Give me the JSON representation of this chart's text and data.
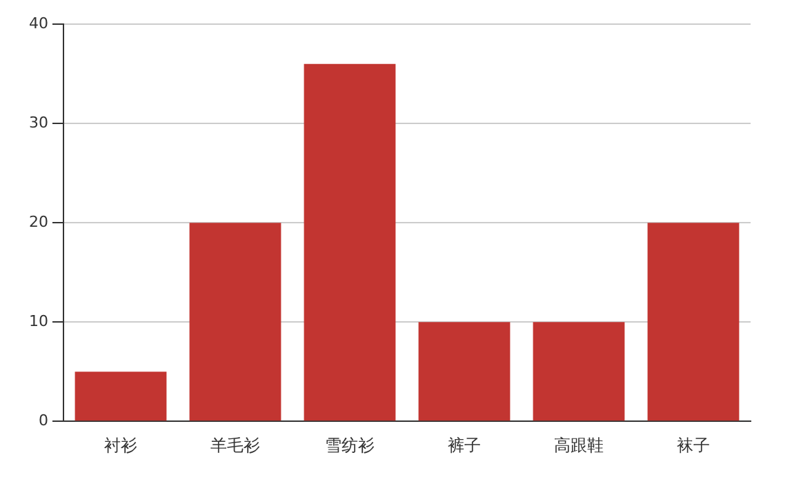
{
  "chart_data": {
    "type": "bar",
    "categories": [
      "衬衫",
      "羊毛衫",
      "雪纺衫",
      "裤子",
      "高跟鞋",
      "袜子"
    ],
    "values": [
      5,
      20,
      36,
      10,
      10,
      20
    ],
    "color": "#c23531",
    "ylim": [
      0,
      40
    ],
    "yticks": [
      0,
      10,
      20,
      30,
      40
    ],
    "grid": "y",
    "legend": false
  }
}
